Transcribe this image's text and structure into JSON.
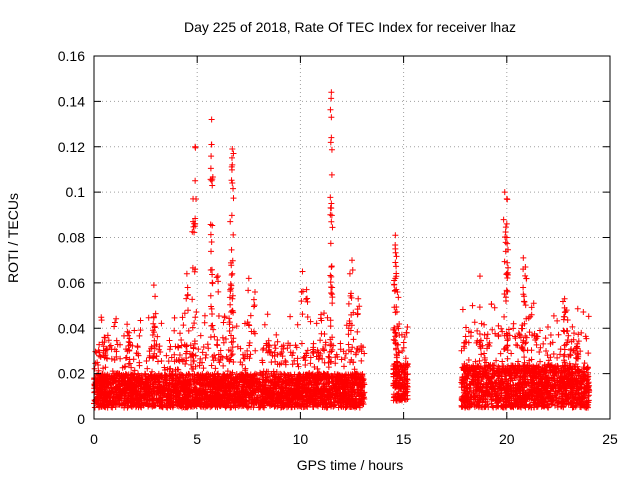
{
  "chart_data": {
    "type": "scatter",
    "title": "Day 225 of 2018, Rate Of TEC Index for receiver lhaz",
    "xlabel": "GPS time / hours",
    "ylabel": "ROTI / TECUs",
    "xlim": [
      0,
      25
    ],
    "ylim": [
      0,
      0.16
    ],
    "xticks": [
      0,
      5,
      10,
      15,
      20,
      25
    ],
    "yticks": [
      0,
      0.02,
      0.04,
      0.06,
      0.08,
      0.1,
      0.12,
      0.14,
      0.16
    ],
    "xtick_labels": [
      "0",
      "5",
      "10",
      "15",
      "20",
      "25"
    ],
    "ytick_labels": [
      "0",
      "0.02",
      "0.04",
      "0.06",
      "0.08",
      "0.1",
      "0.12",
      "0.14",
      "0.16"
    ],
    "grid": true,
    "marker": "+",
    "series_color": "#ff0000",
    "data_segments": [
      {
        "x_start": 0.0,
        "x_end": 13.1,
        "typical_min": 0.005,
        "typical_max": 0.025
      },
      {
        "x_start": 14.5,
        "x_end": 15.2,
        "typical_min": 0.008,
        "typical_max": 0.03
      },
      {
        "x_start": 17.8,
        "x_end": 24.0,
        "typical_min": 0.005,
        "typical_max": 0.03
      }
    ],
    "peaks": [
      {
        "x": 0.5,
        "y": 0.036
      },
      {
        "x": 1.7,
        "y": 0.038
      },
      {
        "x": 2.9,
        "y": 0.045
      },
      {
        "x": 2.9,
        "y": 0.059
      },
      {
        "x": 4.5,
        "y": 0.064
      },
      {
        "x": 4.8,
        "y": 0.087
      },
      {
        "x": 4.9,
        "y": 0.12
      },
      {
        "x": 4.9,
        "y": 0.105
      },
      {
        "x": 4.8,
        "y": 0.097
      },
      {
        "x": 5.7,
        "y": 0.132
      },
      {
        "x": 5.7,
        "y": 0.121
      },
      {
        "x": 5.7,
        "y": 0.105
      },
      {
        "x": 5.7,
        "y": 0.078
      },
      {
        "x": 6.0,
        "y": 0.063
      },
      {
        "x": 6.7,
        "y": 0.119
      },
      {
        "x": 6.7,
        "y": 0.112
      },
      {
        "x": 6.7,
        "y": 0.104
      },
      {
        "x": 6.6,
        "y": 0.087
      },
      {
        "x": 6.7,
        "y": 0.064
      },
      {
        "x": 6.6,
        "y": 0.057
      },
      {
        "x": 7.5,
        "y": 0.062
      },
      {
        "x": 7.8,
        "y": 0.056
      },
      {
        "x": 10.1,
        "y": 0.065
      },
      {
        "x": 10.3,
        "y": 0.057
      },
      {
        "x": 11.0,
        "y": 0.046
      },
      {
        "x": 11.5,
        "y": 0.144
      },
      {
        "x": 11.5,
        "y": 0.133
      },
      {
        "x": 11.5,
        "y": 0.124
      },
      {
        "x": 11.5,
        "y": 0.095
      },
      {
        "x": 11.5,
        "y": 0.067
      },
      {
        "x": 12.5,
        "y": 0.07
      },
      {
        "x": 12.4,
        "y": 0.064
      },
      {
        "x": 12.8,
        "y": 0.053
      },
      {
        "x": 14.6,
        "y": 0.081
      },
      {
        "x": 14.6,
        "y": 0.075
      },
      {
        "x": 14.6,
        "y": 0.069
      },
      {
        "x": 14.6,
        "y": 0.062
      },
      {
        "x": 14.7,
        "y": 0.056
      },
      {
        "x": 18.7,
        "y": 0.063
      },
      {
        "x": 19.9,
        "y": 0.1
      },
      {
        "x": 20.0,
        "y": 0.097
      },
      {
        "x": 20.0,
        "y": 0.086
      },
      {
        "x": 20.0,
        "y": 0.08
      },
      {
        "x": 20.0,
        "y": 0.064
      },
      {
        "x": 20.8,
        "y": 0.071
      },
      {
        "x": 20.9,
        "y": 0.067
      },
      {
        "x": 20.8,
        "y": 0.055
      },
      {
        "x": 22.8,
        "y": 0.053
      },
      {
        "x": 22.8,
        "y": 0.049
      },
      {
        "x": 23.4,
        "y": 0.032
      }
    ]
  }
}
